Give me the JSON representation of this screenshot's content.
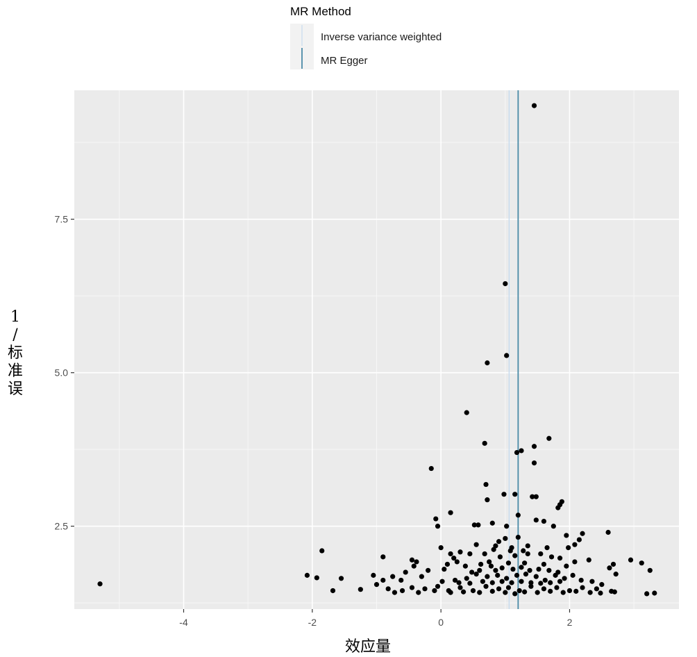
{
  "chart_data": {
    "type": "scatter",
    "title": "",
    "xlabel": "效应量",
    "ylabel": "1/标准误",
    "xlim": [
      -5.7,
      3.7
    ],
    "ylim": [
      1.15,
      9.6
    ],
    "x_ticks": [
      -4,
      -2,
      0,
      2
    ],
    "x_tick_labels": [
      "-4",
      "-2",
      "0",
      "2"
    ],
    "y_ticks": [
      2.5,
      5.0,
      7.5
    ],
    "y_tick_labels": [
      "2.5",
      "5.0",
      "7.5"
    ],
    "grid": true,
    "background": "#ebebeb",
    "legend": {
      "title": "MR Method",
      "position": "top",
      "entries": [
        {
          "label": "Inverse variance weighted",
          "color": "#c6dbef"
        },
        {
          "label": "MR Egger",
          "color": "#4a8aa6"
        }
      ]
    },
    "vlines": [
      {
        "method": "Inverse variance weighted",
        "x": 1.06,
        "color": "#c6dbef"
      },
      {
        "method": "MR Egger",
        "x": 1.2,
        "color": "#4a8aa6"
      }
    ],
    "point_color": "#000000",
    "points": [
      [
        1.45,
        9.35
      ],
      [
        1.0,
        6.45
      ],
      [
        1.02,
        5.28
      ],
      [
        0.72,
        5.16
      ],
      [
        0.4,
        4.35
      ],
      [
        1.68,
        3.93
      ],
      [
        0.68,
        3.85
      ],
      [
        1.45,
        3.8
      ],
      [
        1.25,
        3.73
      ],
      [
        1.18,
        3.7
      ],
      [
        1.45,
        3.53
      ],
      [
        -0.15,
        3.44
      ],
      [
        0.7,
        3.18
      ],
      [
        1.88,
        2.9
      ],
      [
        1.85,
        2.85
      ],
      [
        1.42,
        2.98
      ],
      [
        1.48,
        2.98
      ],
      [
        1.15,
        3.02
      ],
      [
        0.98,
        3.02
      ],
      [
        0.72,
        2.93
      ],
      [
        1.82,
        2.8
      ],
      [
        0.15,
        2.72
      ],
      [
        1.2,
        2.68
      ],
      [
        1.48,
        2.6
      ],
      [
        -0.08,
        2.62
      ],
      [
        -0.05,
        2.5
      ],
      [
        0.52,
        2.52
      ],
      [
        0.58,
        2.52
      ],
      [
        0.8,
        2.55
      ],
      [
        1.02,
        2.5
      ],
      [
        1.75,
        2.5
      ],
      [
        1.6,
        2.58
      ],
      [
        2.6,
        2.4
      ],
      [
        2.2,
        2.38
      ],
      [
        1.95,
        2.35
      ],
      [
        2.15,
        2.28
      ],
      [
        1.0,
        2.3
      ],
      [
        1.2,
        2.32
      ],
      [
        0.9,
        2.25
      ],
      [
        2.08,
        2.2
      ],
      [
        1.98,
        2.15
      ],
      [
        1.65,
        2.15
      ],
      [
        1.35,
        2.18
      ],
      [
        1.1,
        2.15
      ],
      [
        0.82,
        2.12
      ],
      [
        0.55,
        2.2
      ],
      [
        0.45,
        2.05
      ],
      [
        0.3,
        2.08
      ],
      [
        0.0,
        2.15
      ],
      [
        0.15,
        2.05
      ],
      [
        0.2,
        1.98
      ],
      [
        -0.9,
        2.0
      ],
      [
        -1.85,
        2.1
      ],
      [
        -0.45,
        1.95
      ],
      [
        -0.38,
        1.92
      ],
      [
        -0.42,
        1.85
      ],
      [
        1.55,
        2.05
      ],
      [
        1.72,
        2.0
      ],
      [
        1.85,
        1.98
      ],
      [
        2.3,
        1.95
      ],
      [
        2.95,
        1.95
      ],
      [
        3.12,
        1.9
      ],
      [
        2.68,
        1.88
      ],
      [
        2.62,
        1.82
      ],
      [
        2.72,
        1.72
      ],
      [
        3.25,
        1.78
      ],
      [
        2.08,
        1.92
      ],
      [
        1.95,
        1.85
      ],
      [
        1.6,
        1.88
      ],
      [
        1.3,
        1.9
      ],
      [
        1.05,
        1.9
      ],
      [
        0.75,
        1.92
      ],
      [
        0.62,
        1.88
      ],
      [
        0.38,
        1.85
      ],
      [
        0.25,
        1.92
      ],
      [
        0.1,
        1.88
      ],
      [
        0.05,
        1.8
      ],
      [
        -0.2,
        1.78
      ],
      [
        -0.55,
        1.75
      ],
      [
        -0.75,
        1.68
      ],
      [
        -1.05,
        1.7
      ],
      [
        -1.55,
        1.65
      ],
      [
        -2.08,
        1.7
      ],
      [
        -1.93,
        1.66
      ],
      [
        -0.9,
        1.62
      ],
      [
        -0.62,
        1.62
      ],
      [
        -0.3,
        1.68
      ],
      [
        0.02,
        1.6
      ],
      [
        0.22,
        1.62
      ],
      [
        0.4,
        1.65
      ],
      [
        0.55,
        1.72
      ],
      [
        0.72,
        1.68
      ],
      [
        0.88,
        1.7
      ],
      [
        1.02,
        1.65
      ],
      [
        1.18,
        1.7
      ],
      [
        1.32,
        1.72
      ],
      [
        1.48,
        1.68
      ],
      [
        1.62,
        1.62
      ],
      [
        1.78,
        1.7
      ],
      [
        1.92,
        1.65
      ],
      [
        2.05,
        1.7
      ],
      [
        2.18,
        1.62
      ],
      [
        2.35,
        1.6
      ],
      [
        2.5,
        1.55
      ],
      [
        2.42,
        1.48
      ],
      [
        2.2,
        1.5
      ],
      [
        2.0,
        1.45
      ],
      [
        1.8,
        1.5
      ],
      [
        1.6,
        1.48
      ],
      [
        1.4,
        1.52
      ],
      [
        1.22,
        1.45
      ],
      [
        1.05,
        1.5
      ],
      [
        0.9,
        1.48
      ],
      [
        0.7,
        1.52
      ],
      [
        0.5,
        1.45
      ],
      [
        0.3,
        1.5
      ],
      [
        0.12,
        1.45
      ],
      [
        -0.05,
        1.52
      ],
      [
        -0.25,
        1.48
      ],
      [
        -0.45,
        1.5
      ],
      [
        -0.6,
        1.45
      ],
      [
        -0.82,
        1.48
      ],
      [
        -1.0,
        1.55
      ],
      [
        -1.25,
        1.47
      ],
      [
        -1.68,
        1.45
      ],
      [
        -0.72,
        1.42
      ],
      [
        -0.35,
        1.42
      ],
      [
        -0.1,
        1.45
      ],
      [
        0.15,
        1.42
      ],
      [
        0.35,
        1.43
      ],
      [
        0.6,
        1.42
      ],
      [
        0.8,
        1.44
      ],
      [
        1.0,
        1.42
      ],
      [
        1.15,
        1.4
      ],
      [
        1.3,
        1.43
      ],
      [
        1.5,
        1.42
      ],
      [
        1.7,
        1.44
      ],
      [
        1.9,
        1.42
      ],
      [
        2.1,
        1.44
      ],
      [
        2.32,
        1.42
      ],
      [
        2.48,
        1.41
      ],
      [
        2.65,
        1.44
      ],
      [
        2.7,
        1.43
      ],
      [
        3.2,
        1.4
      ],
      [
        3.32,
        1.41
      ],
      [
        -5.3,
        1.56
      ],
      [
        0.8,
        1.58
      ],
      [
        0.95,
        1.6
      ],
      [
        1.1,
        1.58
      ],
      [
        1.25,
        1.6
      ],
      [
        1.4,
        1.58
      ],
      [
        1.55,
        1.57
      ],
      [
        1.7,
        1.58
      ],
      [
        1.85,
        1.6
      ],
      [
        0.65,
        1.6
      ],
      [
        0.45,
        1.57
      ],
      [
        0.28,
        1.58
      ],
      [
        0.85,
        1.78
      ],
      [
        0.95,
        1.82
      ],
      [
        1.12,
        1.8
      ],
      [
        1.25,
        1.83
      ],
      [
        1.38,
        1.78
      ],
      [
        1.52,
        1.8
      ],
      [
        1.68,
        1.78
      ],
      [
        1.82,
        1.75
      ],
      [
        0.78,
        1.85
      ],
      [
        0.6,
        1.78
      ],
      [
        0.48,
        1.75
      ],
      [
        0.92,
        2.0
      ],
      [
        1.15,
        2.02
      ],
      [
        1.35,
        2.05
      ],
      [
        0.68,
        2.05
      ],
      [
        0.85,
        2.18
      ],
      [
        1.08,
        2.1
      ],
      [
        1.28,
        2.1
      ]
    ]
  }
}
